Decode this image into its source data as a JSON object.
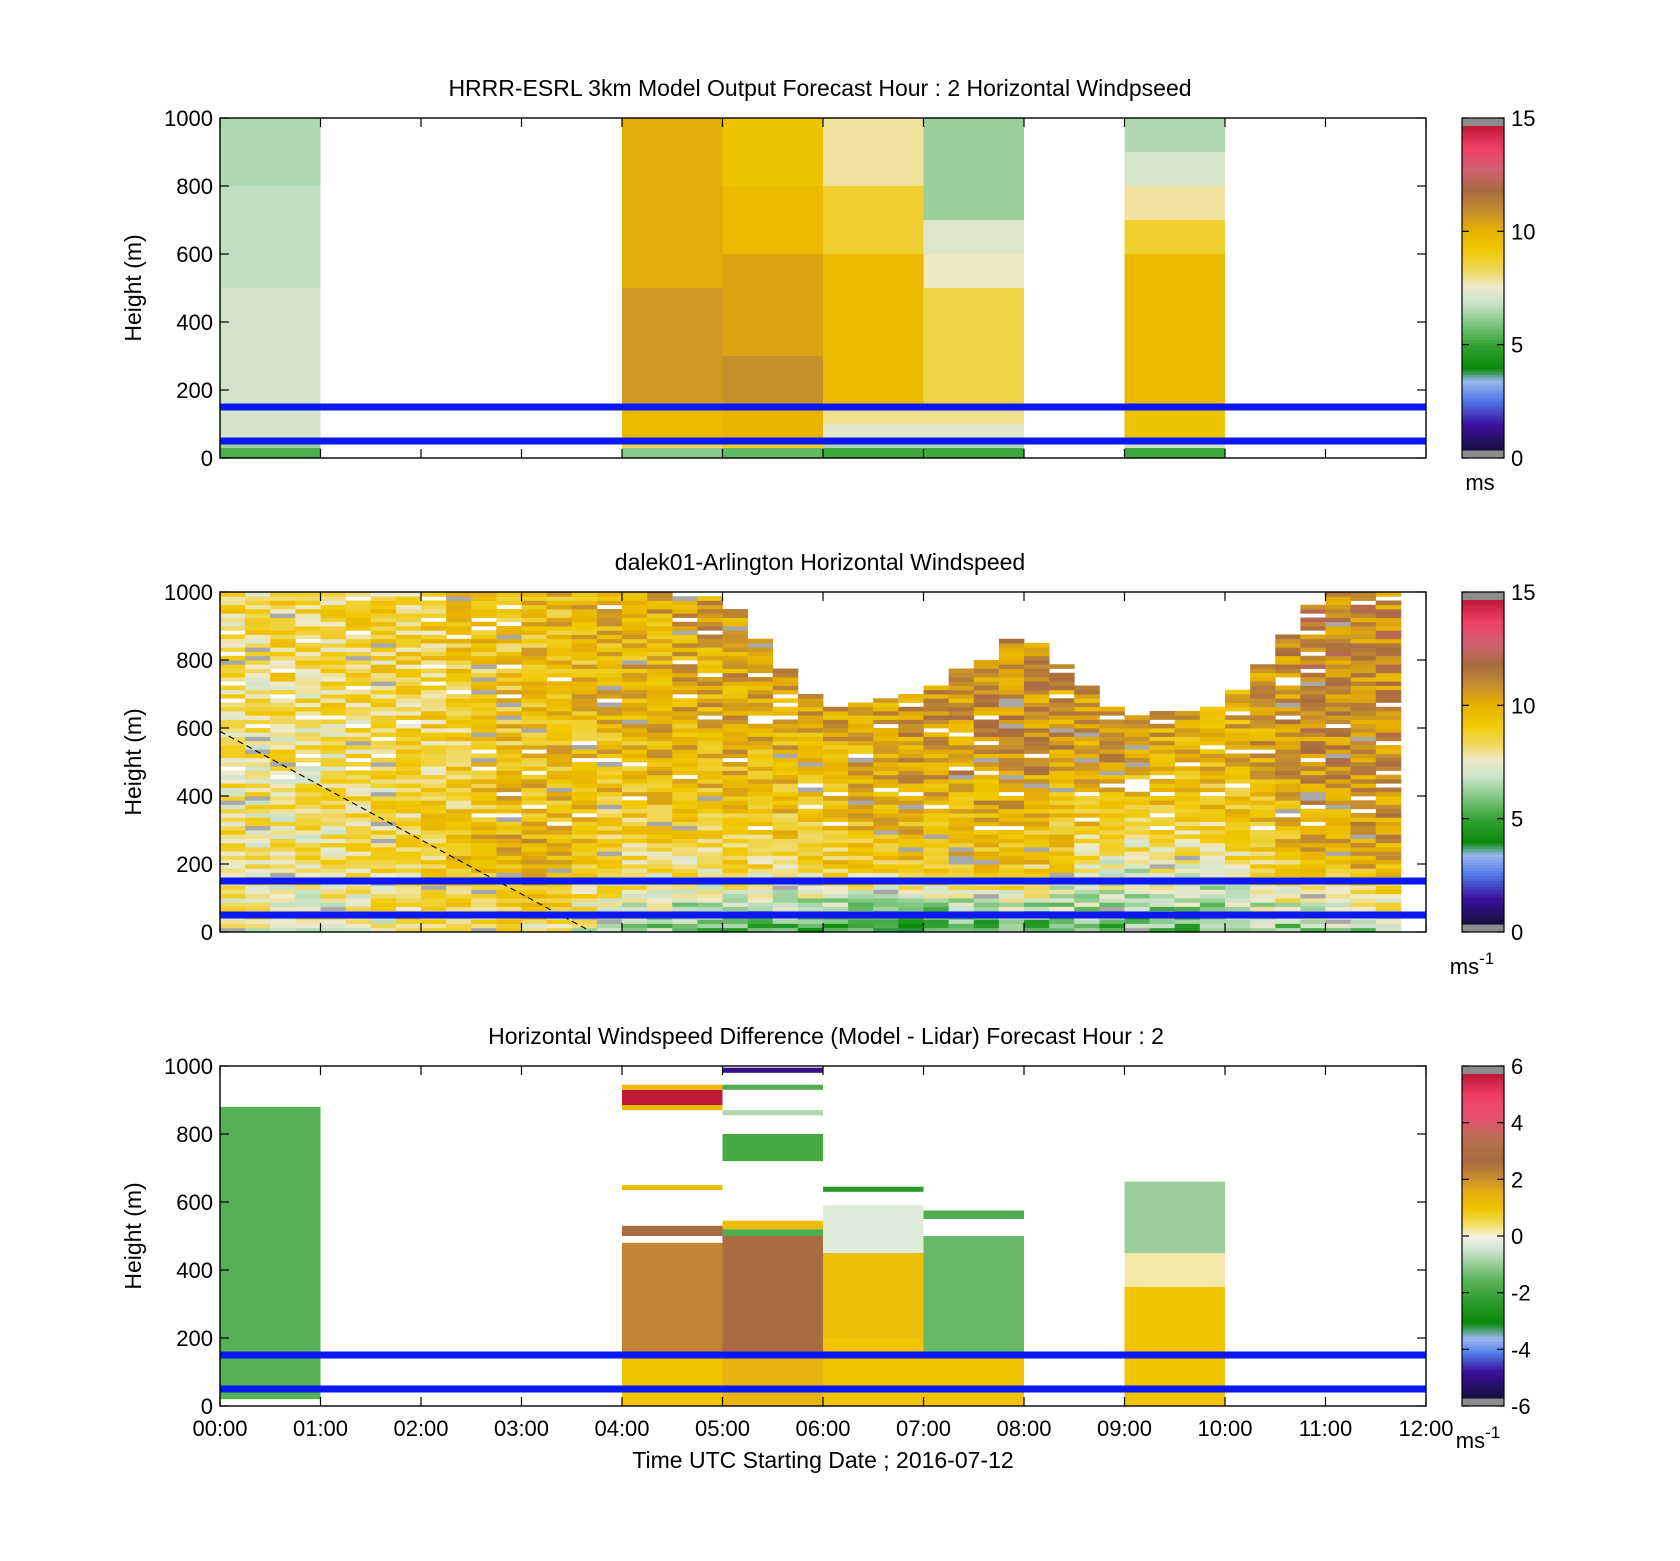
{
  "colors": {
    "reference_lines": "#0b18f2",
    "axes": "#000000",
    "missing_data": "#ffffff"
  },
  "chart_data": [
    {
      "type": "heatmap",
      "title": "HRRR-ESRL 3km Model Output   Forecast Hour : 2 Horizontal Windpseed",
      "ylabel": "Height (m)",
      "xlabel": "",
      "xlim": [
        0,
        12
      ],
      "ylim": [
        0,
        1000
      ],
      "yticks": [
        "0",
        "200",
        "400",
        "600",
        "800",
        "1000"
      ],
      "xticks": [],
      "reference_lines_m": [
        150,
        50
      ],
      "colorbar": {
        "ticks": [
          "0",
          "5",
          "10",
          "15"
        ],
        "unit": "ms",
        "unit_sup": "",
        "range": [
          0,
          15
        ]
      },
      "colormap": "wind",
      "columns": [
        {
          "start_hour": 0,
          "end_hour": 1,
          "bins": [
            {
              "bottom": 0,
              "top": 30,
              "value": 5.2
            },
            {
              "bottom": 30,
              "top": 60,
              "value": 6.2
            },
            {
              "bottom": 60,
              "top": 200,
              "value": 7.0
            },
            {
              "bottom": 200,
              "top": 500,
              "value": 7.0
            },
            {
              "bottom": 500,
              "top": 800,
              "value": 6.7
            },
            {
              "bottom": 800,
              "top": 1000,
              "value": 6.5
            }
          ]
        },
        {
          "start_hour": 4,
          "end_hour": 5,
          "bins": [
            {
              "bottom": 0,
              "top": 30,
              "value": 6.0
            },
            {
              "bottom": 30,
              "top": 60,
              "value": 8.5
            },
            {
              "bottom": 60,
              "top": 150,
              "value": 9.8
            },
            {
              "bottom": 150,
              "top": 500,
              "value": 10.8
            },
            {
              "bottom": 500,
              "top": 1000,
              "value": 10.3
            }
          ]
        },
        {
          "start_hour": 5,
          "end_hour": 6,
          "bins": [
            {
              "bottom": 0,
              "top": 30,
              "value": 5.5
            },
            {
              "bottom": 30,
              "top": 60,
              "value": 9.0
            },
            {
              "bottom": 60,
              "top": 150,
              "value": 10.0
            },
            {
              "bottom": 150,
              "top": 300,
              "value": 11.0
            },
            {
              "bottom": 300,
              "top": 600,
              "value": 10.5
            },
            {
              "bottom": 600,
              "top": 800,
              "value": 9.8
            },
            {
              "bottom": 800,
              "top": 1000,
              "value": 9.5
            }
          ]
        },
        {
          "start_hour": 6,
          "end_hour": 7,
          "bins": [
            {
              "bottom": 0,
              "top": 30,
              "value": 5.0
            },
            {
              "bottom": 30,
              "top": 60,
              "value": 6.5
            },
            {
              "bottom": 60,
              "top": 100,
              "value": 7.3
            },
            {
              "bottom": 100,
              "top": 160,
              "value": 8.0
            },
            {
              "bottom": 160,
              "top": 600,
              "value": 9.8
            },
            {
              "bottom": 600,
              "top": 800,
              "value": 8.8
            },
            {
              "bottom": 800,
              "top": 1000,
              "value": 7.9
            }
          ]
        },
        {
          "start_hour": 7,
          "end_hour": 8,
          "bins": [
            {
              "bottom": 0,
              "top": 30,
              "value": 5.0
            },
            {
              "bottom": 30,
              "top": 60,
              "value": 6.5
            },
            {
              "bottom": 60,
              "top": 100,
              "value": 7.3
            },
            {
              "bottom": 100,
              "top": 150,
              "value": 8.0
            },
            {
              "bottom": 150,
              "top": 500,
              "value": 8.6
            },
            {
              "bottom": 500,
              "top": 600,
              "value": 7.7
            },
            {
              "bottom": 600,
              "top": 700,
              "value": 7.2
            },
            {
              "bottom": 700,
              "top": 1000,
              "value": 6.2
            }
          ]
        },
        {
          "start_hour": 9,
          "end_hour": 10,
          "bins": [
            {
              "bottom": 0,
              "top": 30,
              "value": 5.0
            },
            {
              "bottom": 30,
              "top": 60,
              "value": 7.0
            },
            {
              "bottom": 60,
              "top": 150,
              "value": 9.5
            },
            {
              "bottom": 150,
              "top": 600,
              "value": 9.8
            },
            {
              "bottom": 600,
              "top": 700,
              "value": 8.8
            },
            {
              "bottom": 700,
              "top": 800,
              "value": 7.9
            },
            {
              "bottom": 800,
              "top": 900,
              "value": 7.1
            },
            {
              "bottom": 900,
              "top": 1000,
              "value": 6.5
            }
          ]
        }
      ]
    },
    {
      "type": "heatmap",
      "title": "dalek01-Arlington  Horizontal Windspeed",
      "ylabel": "Height (m)",
      "xlabel": "",
      "xlim": [
        0,
        12
      ],
      "ylim": [
        0,
        1000
      ],
      "yticks": [
        "0",
        "200",
        "400",
        "600",
        "800",
        "1000"
      ],
      "xticks": [],
      "reference_lines_m": [
        150,
        50
      ],
      "dashed_line": {
        "from": [
          0,
          590
        ],
        "to": [
          3.7,
          0
        ]
      },
      "colorbar": {
        "ticks": [
          "0",
          "5",
          "10",
          "15"
        ],
        "unit": "ms",
        "unit_sup": "-1",
        "range": [
          0,
          15
        ]
      },
      "colormap": "wind",
      "column_hours": 0.25,
      "data_end_hour": 11.75,
      "profile": {
        "hours": [
          0,
          1,
          2,
          3,
          4,
          5,
          6,
          7,
          8,
          9,
          10,
          11,
          11.75
        ],
        "near_surface": [
          7.5,
          7.5,
          8.0,
          8.5,
          6.5,
          5.5,
          5.0,
          4.5,
          5.0,
          5.5,
          5.5,
          6.0,
          6.5
        ],
        "at_200m": [
          8.2,
          8.2,
          8.8,
          10.5,
          8.5,
          8.5,
          9.0,
          9.5,
          9.5,
          7.5,
          8.0,
          10.0,
          10.5
        ],
        "at_500m": [
          8.0,
          8.0,
          8.5,
          9.5,
          9.8,
          10.0,
          10.0,
          10.5,
          11.0,
          10.5,
          10.0,
          11.0,
          11.0
        ],
        "at_850m": [
          8.5,
          8.5,
          8.8,
          9.5,
          10.0,
          10.5,
          10.8,
          11.0,
          11.0,
          10.5,
          10.5,
          11.5,
          11.0
        ],
        "top_height_m": [
          1000,
          1000,
          1000,
          1000,
          1000,
          980,
          650,
          700,
          880,
          630,
          660,
          1000,
          1000
        ]
      }
    },
    {
      "type": "heatmap",
      "title": "Horizontal Windspeed Difference (Model - Lidar) Forecast Hour : 2",
      "ylabel": "Height (m)",
      "xlabel": "Time UTC  Starting Date ; 2016-07-12",
      "xlim": [
        0,
        12
      ],
      "ylim": [
        0,
        1000
      ],
      "yticks": [
        "0",
        "200",
        "400",
        "600",
        "800",
        "1000"
      ],
      "xticks": [
        "00:00",
        "01:00",
        "02:00",
        "03:00",
        "04:00",
        "05:00",
        "06:00",
        "07:00",
        "08:00",
        "09:00",
        "10:00",
        "11:00",
        "12:00"
      ],
      "reference_lines_m": [
        150,
        50
      ],
      "colorbar": {
        "ticks": [
          "-6",
          "-4",
          "-2",
          "0",
          "2",
          "4",
          "6"
        ],
        "unit": "ms",
        "unit_sup": "-1",
        "range": [
          -6,
          6
        ]
      },
      "colormap": "diff",
      "columns": [
        {
          "start_hour": 0,
          "end_hour": 1,
          "bins": [
            {
              "bottom": 20,
              "top": 880,
              "value": -1.7
            }
          ]
        },
        {
          "start_hour": 4,
          "end_hour": 5,
          "bins": [
            {
              "bottom": 0,
              "top": 150,
              "value": 1.0
            },
            {
              "bottom": 150,
              "top": 480,
              "value": 2.3
            },
            {
              "bottom": 500,
              "top": 530,
              "value": 2.8
            },
            {
              "bottom": 635,
              "top": 650,
              "value": 1.2
            },
            {
              "bottom": 870,
              "top": 885,
              "value": 1.2
            },
            {
              "bottom": 885,
              "top": 930,
              "value": 6.3
            },
            {
              "bottom": 930,
              "top": 945,
              "value": 1.2
            }
          ]
        },
        {
          "start_hour": 5,
          "end_hour": 6,
          "bins": [
            {
              "bottom": 0,
              "top": 150,
              "value": 1.5
            },
            {
              "bottom": 150,
              "top": 500,
              "value": 2.8
            },
            {
              "bottom": 500,
              "top": 520,
              "value": -1.8
            },
            {
              "bottom": 520,
              "top": 545,
              "value": 1.2
            },
            {
              "bottom": 720,
              "top": 800,
              "value": -2.0
            },
            {
              "bottom": 855,
              "top": 870,
              "value": -0.8
            },
            {
              "bottom": 930,
              "top": 945,
              "value": -1.8
            },
            {
              "bottom": 980,
              "top": 995,
              "value": -5.2
            }
          ]
        },
        {
          "start_hour": 6,
          "end_hour": 7,
          "bins": [
            {
              "bottom": 0,
              "top": 200,
              "value": 1.0
            },
            {
              "bottom": 200,
              "top": 450,
              "value": 1.2
            },
            {
              "bottom": 450,
              "top": 590,
              "value": -0.3
            },
            {
              "bottom": 630,
              "top": 645,
              "value": -2.5
            }
          ]
        },
        {
          "start_hour": 7,
          "end_hour": 8,
          "bins": [
            {
              "bottom": 0,
              "top": 150,
              "value": 1.0
            },
            {
              "bottom": 150,
              "top": 500,
              "value": -1.5
            },
            {
              "bottom": 550,
              "top": 575,
              "value": -1.8
            }
          ]
        },
        {
          "start_hour": 9,
          "end_hour": 10,
          "bins": [
            {
              "bottom": 0,
              "top": 350,
              "value": 1.0
            },
            {
              "bottom": 350,
              "top": 450,
              "value": 0.2
            },
            {
              "bottom": 450,
              "top": 660,
              "value": -1.0
            }
          ]
        }
      ]
    }
  ]
}
